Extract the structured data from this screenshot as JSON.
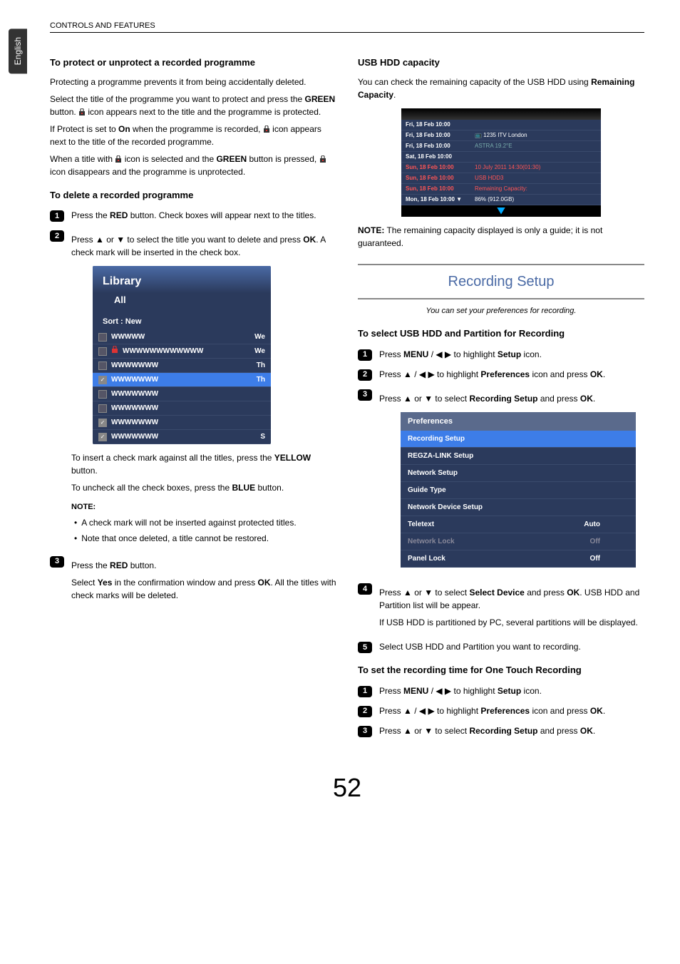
{
  "lang_tab": "English",
  "header": "CONTROLS AND FEATURES",
  "page_number": "52",
  "left": {
    "h1": "To protect or unprotect a recorded programme",
    "p1": "Protecting a programme prevents it from being accidentally deleted.",
    "p2a": "Select the title of the programme you want to protect and press the ",
    "p2b": "GREEN",
    "p2c": " button. ",
    "p2d": " icon appears next to the title and the programme is protected.",
    "p3a": "If Protect is set to ",
    "p3b": "On",
    "p3c": " when the programme is recorded, ",
    "p3d": " icon appears next to the title of the recorded programme.",
    "p4a": "When a title with ",
    "p4b": " icon is selected and the ",
    "p4c": "GREEN",
    "p4d": " button is pressed, ",
    "p4e": " icon disappears and the programme is unprotected.",
    "h2": "To delete a recorded programme",
    "step1a": "Press the ",
    "step1b": "RED",
    "step1c": " button. Check boxes will appear next to the titles.",
    "step2a": "Press ▲ or ▼ to select the title you want to delete and press ",
    "step2b": "OK",
    "step2c": ". A check mark will be inserted in the check box.",
    "lib": {
      "title": "Library",
      "sub": "All",
      "sort": "Sort : New",
      "rows": [
        {
          "chk": false,
          "lock": false,
          "text": "WWWWW",
          "r": "We"
        },
        {
          "chk": false,
          "lock": true,
          "text": "WWWWWWWWWWWW",
          "r": "We"
        },
        {
          "chk": false,
          "lock": false,
          "text": "WWWWWWW",
          "r": "Th"
        },
        {
          "chk": true,
          "lock": false,
          "sel": true,
          "text": "WWWWWWW",
          "r": "Th"
        },
        {
          "chk": false,
          "lock": false,
          "text": "WWWWWWW",
          "r": ""
        },
        {
          "chk": false,
          "lock": false,
          "text": "WWWWWWW",
          "r": ""
        },
        {
          "chk": true,
          "lock": false,
          "text": "WWWWWWW",
          "r": ""
        },
        {
          "chk": true,
          "lock": false,
          "text": "WWWWWWW",
          "r": "S"
        }
      ]
    },
    "p5a": "To insert a check mark against all the titles, press the ",
    "p5b": "YELLOW",
    "p5c": " button.",
    "p6a": "To uncheck all the check boxes, press the ",
    "p6b": "BLUE",
    "p6c": " button.",
    "note": "NOTE:",
    "bullet1": "A check mark will not be inserted against protected titles.",
    "bullet2": "Note that once deleted, a title cannot be restored.",
    "step3a": "Press the ",
    "step3b": "RED",
    "step3c": " button.",
    "step3d": "Select ",
    "step3e": "Yes",
    "step3f": " in the confirmation window and press ",
    "step3g": "OK",
    "step3h": ". All the titles with check marks will be deleted."
  },
  "right": {
    "h1": "USB HDD capacity",
    "p1a": "You can check the remaining capacity of the USB HDD using ",
    "p1b": "Remaining Capacity",
    "p1c": ".",
    "remaining": {
      "rows": [
        {
          "l": "Fri, 18 Feb 10:00",
          "r": "",
          "red": false
        },
        {
          "l": "Fri, 18 Feb 10:00",
          "r": "📺 1235 ITV London",
          "red": false
        },
        {
          "l": "Fri, 18 Feb 10:00",
          "r": "ASTRA 19.2°E",
          "red": false,
          "dim": true
        },
        {
          "l": "Sat, 18 Feb 10:00",
          "r": "",
          "red": false
        },
        {
          "l": "Sun, 18 Feb 10:00",
          "r": "10 July 2011  14:30(01:30)",
          "red": true
        },
        {
          "l": "Sun, 18 Feb 10:00",
          "r": "USB HDD3",
          "red": true
        },
        {
          "l": "Sun, 18 Feb 10:00",
          "r": "Remaining Capacity:",
          "red": true
        },
        {
          "l": "Mon, 18 Feb 10:00  ▼",
          "r": "86% (912.0GB)",
          "red": false
        }
      ]
    },
    "note1a": "NOTE:",
    "note1b": " The remaining capacity displayed is only a guide; it is not guaranteed.",
    "section_title": "Recording Setup",
    "section_desc": "You can set your preferences for recording.",
    "h2": "To select USB HDD and Partition for Recording",
    "s1a": "Press ",
    "s1b": "MENU",
    "s1c": " / ◀ ▶ to highlight ",
    "s1d": "Setup",
    "s1e": " icon.",
    "s2a": "Press ▲ / ◀ ▶ to highlight ",
    "s2b": "Preferences",
    "s2c": " icon and press ",
    "s2d": "OK",
    "s2e": ".",
    "s3a": "Press ▲ or ▼ to select ",
    "s3b": "Recording Setup",
    "s3c": " and press ",
    "s3d": "OK",
    "s3e": ".",
    "prefs": {
      "head": "Preferences",
      "rows": [
        {
          "label": "Recording Setup",
          "val": "",
          "sel": true
        },
        {
          "label": "REGZA-LINK Setup",
          "val": ""
        },
        {
          "label": "Network Setup",
          "val": ""
        },
        {
          "label": "Guide Type",
          "val": ""
        },
        {
          "label": "Network Device Setup",
          "val": ""
        },
        {
          "label": "Teletext",
          "val": "Auto"
        },
        {
          "label": "Network Lock",
          "val": "Off",
          "dim": true
        },
        {
          "label": "Panel Lock",
          "val": "Off"
        }
      ]
    },
    "s4a": "Press ▲ or ▼ to select ",
    "s4b": "Select Device",
    "s4c": " and press ",
    "s4d": "OK",
    "s4e": ". USB HDD and Partition list will be appear.",
    "s4f": "If USB HDD is partitioned by PC, several partitions will be displayed.",
    "s5": "Select USB HDD and Partition you want to recording.",
    "h3": "To set the recording time for One Touch Recording",
    "t1a": "Press ",
    "t1b": "MENU",
    "t1c": " / ◀ ▶ to highlight ",
    "t1d": "Setup",
    "t1e": " icon.",
    "t2a": "Press ▲ / ◀ ▶ to highlight ",
    "t2b": "Preferences",
    "t2c": " icon and press ",
    "t2d": "OK",
    "t2e": ".",
    "t3a": "Press ▲ or ▼ to select ",
    "t3b": "Recording Setup",
    "t3c": " and press ",
    "t3d": "OK",
    "t3e": "."
  }
}
